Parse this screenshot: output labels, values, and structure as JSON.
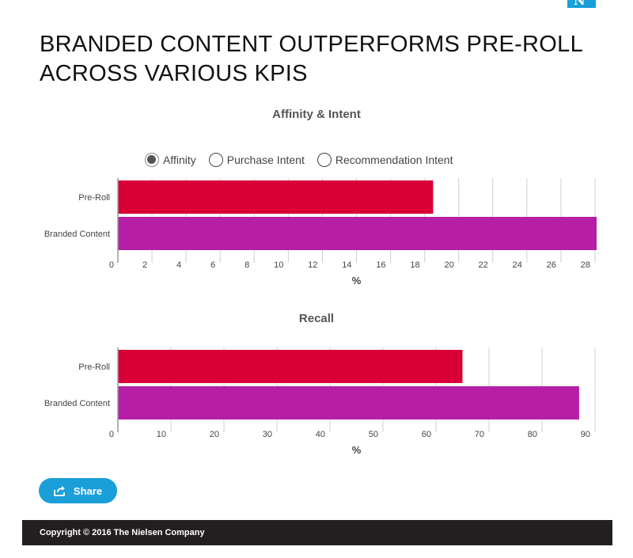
{
  "header": {
    "title": "BRANDED CONTENT OUTPERFORMS PRE-ROLL ACROSS VARIOUS KPIS"
  },
  "legend": {
    "options": [
      "Affinity",
      "Purchase Intent",
      "Recommendation Intent"
    ],
    "selected": "Affinity"
  },
  "share_button": {
    "label": "Share",
    "icon": "share-icon"
  },
  "footer": {
    "copyright": "Copyright © 2016 The Nielsen Company"
  },
  "colors": {
    "pre_roll": "#da0037",
    "branded_content": "#b51ea5",
    "accent": "#1a9fd9",
    "footer_bg": "#231f20"
  },
  "chart_data": [
    {
      "type": "bar",
      "orientation": "horizontal",
      "title": "Affinity & Intent",
      "categories": [
        "Pre-Roll",
        "Branded Content"
      ],
      "values": [
        18.5,
        28.4
      ],
      "xlabel": "%",
      "xlim": [
        0,
        28
      ],
      "xticks": [
        0,
        2,
        4,
        6,
        8,
        10,
        12,
        14,
        16,
        18,
        20,
        22,
        24,
        26,
        28
      ],
      "grid": true
    },
    {
      "type": "bar",
      "orientation": "horizontal",
      "title": "Recall",
      "categories": [
        "Pre-Roll",
        "Branded Content"
      ],
      "values": [
        65,
        87
      ],
      "xlabel": "%",
      "xlim": [
        0,
        90
      ],
      "xticks": [
        0,
        10,
        20,
        30,
        40,
        50,
        60,
        70,
        80,
        90
      ],
      "grid": true
    }
  ]
}
